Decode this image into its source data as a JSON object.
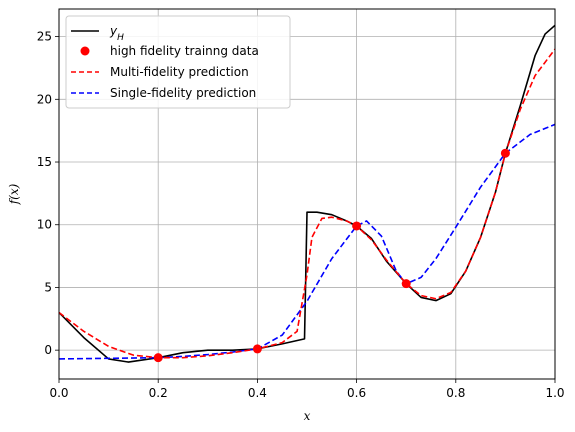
{
  "chart_data": {
    "type": "line",
    "title": "",
    "xlabel": "x",
    "ylabel": "f(x)",
    "xlim": [
      0,
      1
    ],
    "ylim": [
      -2.3,
      27.2
    ],
    "x_ticks": [
      "0.0",
      "0.2",
      "0.4",
      "0.6",
      "0.8",
      "1.0"
    ],
    "y_ticks": [
      "0",
      "5",
      "10",
      "15",
      "20",
      "25"
    ],
    "grid": true,
    "legend_position": "top-left",
    "legend": [
      "y_H",
      "high fidelity trainng data",
      "Multi-fidelity prediction",
      "Single-fidelity prediction"
    ],
    "series": [
      {
        "name": "y_H",
        "style": "solid",
        "color": "#000000",
        "x": [
          0.0,
          0.05,
          0.1,
          0.14,
          0.2,
          0.25,
          0.3,
          0.35,
          0.4,
          0.45,
          0.495,
          0.5,
          0.52,
          0.55,
          0.58,
          0.6,
          0.63,
          0.66,
          0.7,
          0.73,
          0.76,
          0.79,
          0.82,
          0.85,
          0.88,
          0.9,
          0.93,
          0.96,
          0.98,
          1.0
        ],
        "y": [
          3.0,
          1.0,
          -0.7,
          -0.95,
          -0.6,
          -0.2,
          0.0,
          0.0,
          0.1,
          0.5,
          0.9,
          11.0,
          11.0,
          10.8,
          10.3,
          9.9,
          8.9,
          7.1,
          5.3,
          4.2,
          3.95,
          4.5,
          6.3,
          9.0,
          12.6,
          15.7,
          19.5,
          23.5,
          25.2,
          25.9
        ]
      },
      {
        "name": "high fidelity trainng data",
        "style": "scatter",
        "color": "#ff0000",
        "x": [
          0.2,
          0.4,
          0.6,
          0.7,
          0.9
        ],
        "y": [
          -0.6,
          0.1,
          9.9,
          5.3,
          15.7
        ]
      },
      {
        "name": "Multi-fidelity prediction",
        "style": "dashed",
        "color": "#ff0000",
        "x": [
          0.0,
          0.05,
          0.1,
          0.15,
          0.2,
          0.25,
          0.3,
          0.35,
          0.4,
          0.45,
          0.48,
          0.5,
          0.51,
          0.53,
          0.55,
          0.58,
          0.6,
          0.63,
          0.66,
          0.7,
          0.73,
          0.76,
          0.79,
          0.82,
          0.85,
          0.88,
          0.9,
          0.93,
          0.96,
          1.0
        ],
        "y": [
          3.0,
          1.5,
          0.3,
          -0.4,
          -0.6,
          -0.6,
          -0.45,
          -0.2,
          0.1,
          0.6,
          1.5,
          6.0,
          9.0,
          10.5,
          10.6,
          10.3,
          9.9,
          8.8,
          7.2,
          5.3,
          4.35,
          4.1,
          4.6,
          6.3,
          9.0,
          12.6,
          15.7,
          19.2,
          21.9,
          24.0
        ]
      },
      {
        "name": "Single-fidelity prediction",
        "style": "dashed",
        "color": "#0000ff",
        "x": [
          0.0,
          0.1,
          0.2,
          0.25,
          0.3,
          0.35,
          0.4,
          0.45,
          0.5,
          0.55,
          0.6,
          0.62,
          0.65,
          0.68,
          0.7,
          0.73,
          0.76,
          0.8,
          0.85,
          0.9,
          0.95,
          1.0
        ],
        "y": [
          -0.7,
          -0.65,
          -0.6,
          -0.5,
          -0.35,
          -0.15,
          0.1,
          1.2,
          3.9,
          7.3,
          9.9,
          10.3,
          9.1,
          6.3,
          5.3,
          5.8,
          7.3,
          9.8,
          13.0,
          15.7,
          17.2,
          18.0
        ]
      }
    ]
  }
}
